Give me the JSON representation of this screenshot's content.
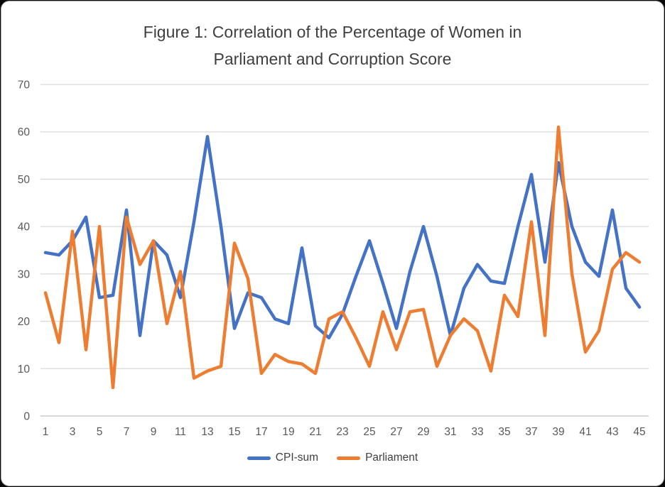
{
  "window": {
    "background": "#0a0a0a",
    "card_background": "#ffffff",
    "card_border": "#a9a9a9"
  },
  "colors": {
    "title_text": "#3f3f3f",
    "tick_text": "#595959",
    "gridline": "#d9d9d9",
    "axis_line": "#bfbfbf",
    "cpi_blue": "#4472C4",
    "parliament_orange": "#ED7D31"
  },
  "chart_data": {
    "type": "line",
    "title": "Figure 1: Correlation of the Percentage of Women in Parliament and Corruption Score",
    "title_lines": [
      "Figure 1: Correlation of the Percentage of Women in",
      "Parliament and Corruption Score"
    ],
    "xlabel": "",
    "ylabel": "",
    "x": [
      1,
      2,
      3,
      4,
      5,
      6,
      7,
      8,
      9,
      10,
      11,
      12,
      13,
      14,
      15,
      16,
      17,
      18,
      19,
      20,
      21,
      22,
      23,
      24,
      25,
      26,
      27,
      28,
      29,
      30,
      31,
      32,
      33,
      34,
      35,
      36,
      37,
      38,
      39,
      40,
      41,
      42,
      43,
      44,
      45
    ],
    "x_tick_labels": [
      "1",
      "3",
      "5",
      "7",
      "9",
      "11",
      "13",
      "15",
      "17",
      "19",
      "21",
      "23",
      "25",
      "27",
      "29",
      "31",
      "33",
      "35",
      "37",
      "39",
      "41",
      "43",
      "45"
    ],
    "y_ticks": [
      0,
      10,
      20,
      30,
      40,
      50,
      60,
      70
    ],
    "ylim": [
      0,
      70
    ],
    "grid": "horizontal",
    "legend_position": "bottom",
    "series": [
      {
        "name": "CPI-sum",
        "color": "#4472C4",
        "values": [
          34.5,
          34,
          37,
          42,
          25,
          25.5,
          43.5,
          17,
          37,
          34,
          25,
          41,
          59,
          40,
          18.5,
          26,
          25,
          20.5,
          19.5,
          35.5,
          19,
          16.5,
          21.5,
          29.5,
          37,
          28,
          18.5,
          30.5,
          40,
          29.5,
          17,
          27,
          32,
          28.5,
          28,
          40,
          51,
          32.5,
          53.5,
          40,
          32.5,
          29.5,
          43.5,
          27,
          23
        ]
      },
      {
        "name": "Parliament",
        "color": "#ED7D31",
        "values": [
          26,
          15.5,
          39,
          14,
          40,
          6,
          42,
          32,
          37,
          19.5,
          30.5,
          8,
          9.5,
          10.5,
          36.5,
          29,
          9,
          13,
          11.5,
          11,
          9,
          20.5,
          22,
          16.5,
          10.5,
          22,
          14,
          22,
          22.5,
          10.5,
          17,
          20.5,
          18,
          9.5,
          25.5,
          21,
          41,
          17,
          61,
          30,
          13.5,
          18,
          31,
          34.5,
          32.5
        ]
      }
    ]
  }
}
